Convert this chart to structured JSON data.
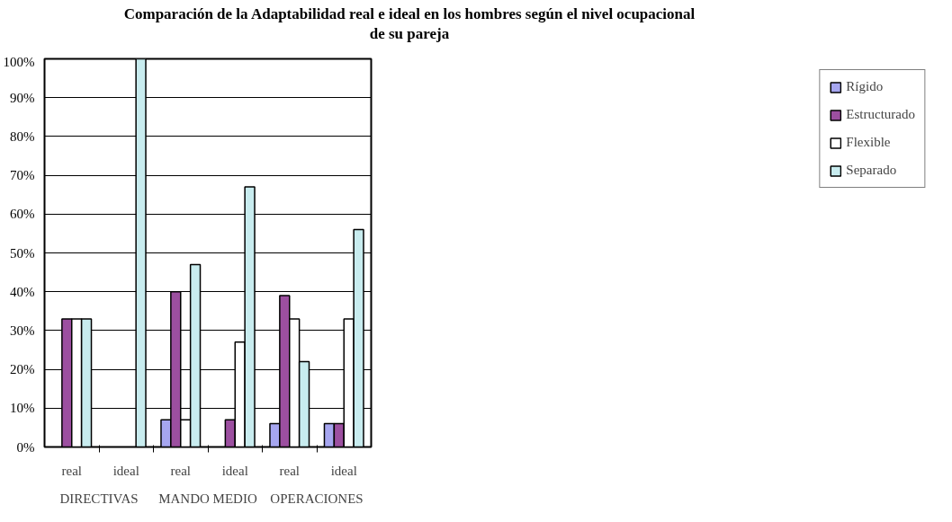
{
  "chart_data": {
    "type": "bar",
    "title": "Comparación de la Adaptabilidad real e ideal en los hombres según el nivel ocupacional\nde su pareja",
    "categories": [
      "real",
      "ideal",
      "real",
      "ideal",
      "real",
      "ideal"
    ],
    "annotations": [
      "DIRECTIVAS",
      "MANDO MEDIO",
      "OPERACIONES"
    ],
    "series": [
      {
        "name": "Rígido",
        "color": "#a6a6f0",
        "values": [
          null,
          null,
          7,
          null,
          6,
          6
        ]
      },
      {
        "name": "Estructurado",
        "color": "#9c4fa0",
        "values": [
          33,
          null,
          40,
          7,
          39,
          6
        ]
      },
      {
        "name": "Flexible",
        "color": "#ffffff",
        "values": [
          33,
          null,
          7,
          27,
          33,
          33
        ]
      },
      {
        "name": "Separado",
        "color": "#c8ecef",
        "values": [
          33,
          100,
          47,
          67,
          22,
          56
        ]
      }
    ],
    "ylim": [
      0,
      100
    ],
    "yticks": [
      {
        "value": 0,
        "label": "0%"
      },
      {
        "value": 10,
        "label": "10%"
      },
      {
        "value": 20,
        "label": "20%"
      },
      {
        "value": 30,
        "label": "30%"
      },
      {
        "value": 40,
        "label": "40%"
      },
      {
        "value": 50,
        "label": "50%"
      },
      {
        "value": 60,
        "label": "60%"
      },
      {
        "value": 70,
        "label": "70%"
      },
      {
        "value": 80,
        "label": "80%"
      },
      {
        "value": 90,
        "label": "90%"
      },
      {
        "value": 100,
        "label": "100%"
      }
    ],
    "grid": "y",
    "legend": "right"
  }
}
